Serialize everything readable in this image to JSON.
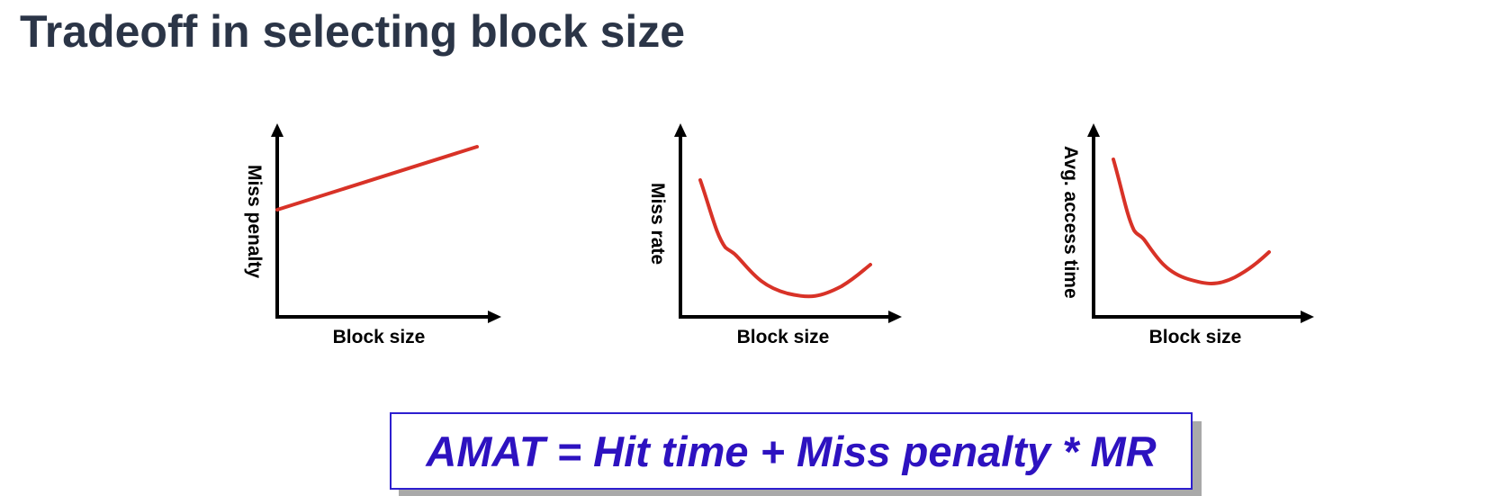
{
  "title": "Tradeoff in selecting block size",
  "plots": [
    {
      "ylabel": "Miss penalty",
      "xlabel": "Block size",
      "curve_shape": "increasing-linear",
      "curve_color": "#d83227"
    },
    {
      "ylabel": "Miss rate",
      "xlabel": "Block size",
      "curve_shape": "decreasing-then-rising (U-shape)",
      "curve_color": "#d83227"
    },
    {
      "ylabel": "Avg. access time",
      "xlabel": "Block size",
      "curve_shape": "decreasing-then-rising (U-shape)",
      "curve_color": "#d83227"
    }
  ],
  "formula": "AMAT = Hit time + Miss penalty * MR",
  "colors": {
    "title": "#2b3547",
    "curve": "#d83227",
    "formula_text": "#2d12c0",
    "formula_border": "#2d1fcf",
    "formula_shadow": "#a9a9a9"
  }
}
